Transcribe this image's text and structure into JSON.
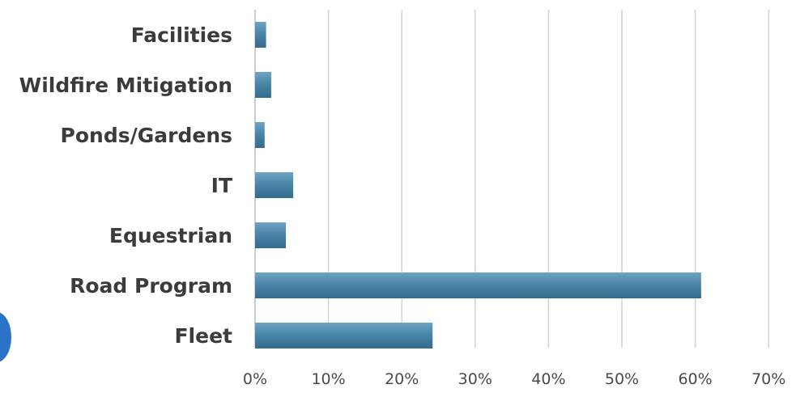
{
  "chart_data": {
    "type": "bar",
    "orientation": "horizontal",
    "title": "",
    "xlabel": "",
    "ylabel": "",
    "categories": [
      "Facilities",
      "Wildfire Mitigation",
      "Ponds/Gardens",
      "IT",
      "Equestrian",
      "Road Program",
      "Fleet"
    ],
    "values": [
      1.5,
      2.2,
      1.3,
      5.2,
      4.2,
      60.8,
      24.2
    ],
    "value_unit": "percent",
    "xlim": [
      0,
      70
    ],
    "x_ticks": [
      0,
      10,
      20,
      30,
      40,
      50,
      60,
      70
    ],
    "x_tick_labels": [
      "0%",
      "10%",
      "20%",
      "30%",
      "40%",
      "50%",
      "60%",
      "70%"
    ],
    "grid": "vertical",
    "legend": "none",
    "bar_color": "#4a86a8"
  }
}
